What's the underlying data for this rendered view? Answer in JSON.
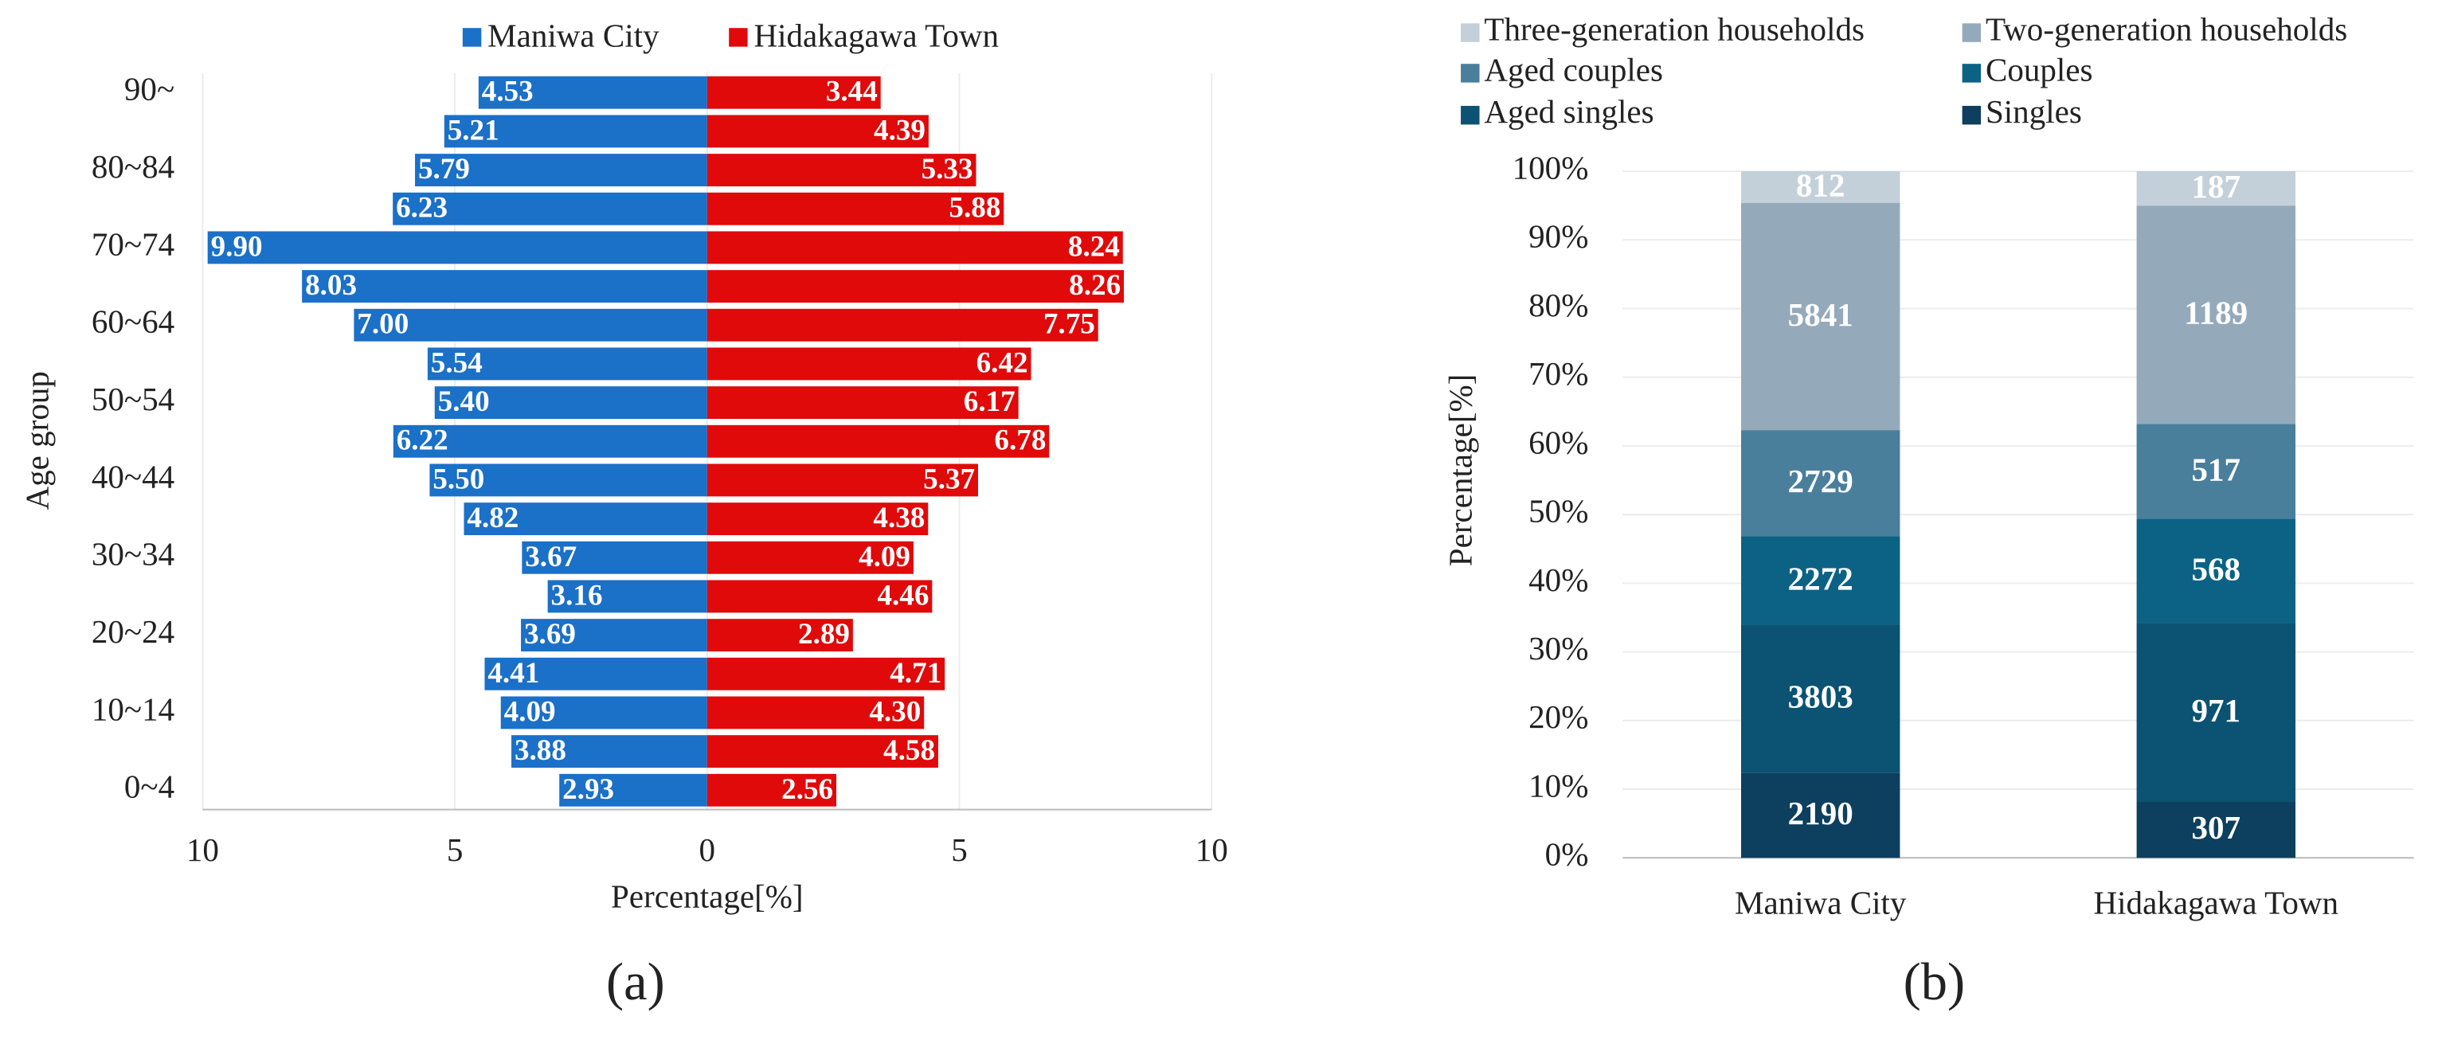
{
  "chart_data": [
    {
      "type": "pyramid",
      "legend_position": "top",
      "x_label": "Percentage[%]",
      "y_label": "Age group",
      "caption": "(a)",
      "categories": [
        "0~4",
        null,
        "10~14",
        null,
        "20~24",
        null,
        "30~34",
        null,
        "40~44",
        null,
        "50~54",
        null,
        "60~64",
        null,
        "70~74",
        null,
        "80~84",
        null,
        "90~"
      ],
      "series": [
        {
          "name": "Maniwa City",
          "color": "#1b70c8",
          "values": [
            2.93,
            3.88,
            4.09,
            4.41,
            3.69,
            3.16,
            3.67,
            4.82,
            5.5,
            6.22,
            5.4,
            5.54,
            7.0,
            8.03,
            9.9,
            6.23,
            5.79,
            5.21,
            4.53
          ],
          "value_labels": [
            "2.93",
            "3.88",
            "4.09",
            "4.41",
            "3.69",
            "3.16",
            "3.67",
            "4.82",
            "5.50",
            "6.22",
            "5.40",
            "5.54",
            "7.00",
            "8.03",
            "9.90",
            "6.23",
            "5.79",
            "5.21",
            "4.53"
          ]
        },
        {
          "name": "Hidakagawa Town",
          "color": "#e00a0a",
          "values": [
            2.56,
            4.58,
            4.3,
            4.71,
            2.89,
            4.46,
            4.09,
            4.38,
            5.37,
            6.78,
            6.17,
            6.42,
            7.75,
            8.26,
            8.24,
            5.88,
            5.33,
            4.39,
            3.44
          ],
          "value_labels": [
            "2.56",
            "4.58",
            "4.30",
            "4.71",
            "2.89",
            "4.46",
            "4.09",
            "4.38",
            "5.37",
            "6.78",
            "6.17",
            "6.42",
            "7.75",
            "8.26",
            "8.24",
            "5.88",
            "5.33",
            "4.39",
            "3.44"
          ]
        }
      ],
      "xlim": [
        -10,
        10
      ],
      "xticks": [
        {
          "value": -10,
          "label": "10"
        },
        {
          "value": -5,
          "label": "5"
        },
        0,
        5,
        10
      ],
      "grid": true
    },
    {
      "type": "stacked_percent",
      "legend_position": "top",
      "y_label": "Percentage[%]",
      "caption": "(b)",
      "categories": [
        "Maniwa City",
        "Hidakagawa Town"
      ],
      "series": [
        {
          "name": "Singles",
          "color": "#0d3f5e",
          "values": [
            2190,
            307
          ]
        },
        {
          "name": "Aged singles",
          "color": "#0b5273",
          "values": [
            3803,
            971
          ]
        },
        {
          "name": "Couples",
          "color": "#0c6285",
          "values": [
            2272,
            568
          ]
        },
        {
          "name": "Aged couples",
          "color": "#4a7f9c",
          "values": [
            2729,
            517
          ]
        },
        {
          "name": "Two-generation households",
          "color": "#94aabb",
          "values": [
            5841,
            1189
          ]
        },
        {
          "name": "Three-generation households",
          "color": "#c4d0d9",
          "values": [
            812,
            187
          ]
        }
      ],
      "ylim": [
        0,
        100
      ],
      "yticks": [
        {
          "value": 0,
          "label": "0%"
        },
        {
          "value": 10,
          "label": "10%"
        },
        {
          "value": 20,
          "label": "20%"
        },
        {
          "value": 30,
          "label": "30%"
        },
        {
          "value": 40,
          "label": "40%"
        },
        {
          "value": 50,
          "label": "50%"
        },
        {
          "value": 60,
          "label": "60%"
        },
        {
          "value": 70,
          "label": "70%"
        },
        {
          "value": 80,
          "label": "80%"
        },
        {
          "value": 90,
          "label": "90%"
        },
        {
          "value": 100,
          "label": "100%"
        }
      ],
      "grid": true
    }
  ]
}
